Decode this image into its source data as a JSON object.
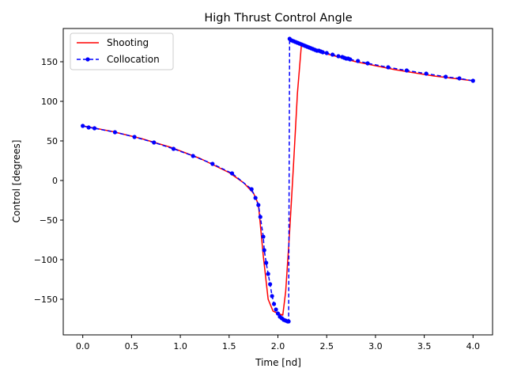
{
  "chart_data": {
    "type": "line",
    "title": "High Thrust Control Angle",
    "xlabel": "Time [nd]",
    "ylabel": "Control [degrees]",
    "xlim": [
      -0.2,
      4.2
    ],
    "ylim": [
      -195,
      192
    ],
    "xticks": [
      0.0,
      0.5,
      1.0,
      1.5,
      2.0,
      2.5,
      3.0,
      3.5,
      4.0
    ],
    "xtick_labels": [
      "0.0",
      "0.5",
      "1.0",
      "1.5",
      "2.0",
      "2.5",
      "3.0",
      "3.5",
      "4.0"
    ],
    "yticks": [
      -150,
      -100,
      -50,
      0,
      50,
      100,
      150
    ],
    "ytick_labels": [
      "−150",
      "−100",
      "−50",
      "0",
      "50",
      "100",
      "150"
    ],
    "grid": false,
    "legend_position": "upper-left",
    "series": [
      {
        "name": "Shooting",
        "color": "#ff0000",
        "style": "solid",
        "marker": "none",
        "x": [
          0.0,
          0.3,
          0.6,
          0.9,
          1.2,
          1.5,
          1.65,
          1.75,
          1.8,
          1.85,
          1.9,
          1.95,
          2.0,
          2.05,
          2.08,
          2.12,
          2.16,
          2.2,
          2.24,
          2.3,
          2.5,
          2.8,
          3.2,
          3.6,
          4.0
        ],
        "y": [
          69,
          62,
          53,
          42,
          28,
          10,
          -3,
          -16,
          -30,
          -95,
          -150,
          -165,
          -168,
          -170,
          -140,
          -65,
          20,
          110,
          170,
          168,
          160,
          150,
          140,
          132,
          126
        ]
      },
      {
        "name": "Collocation",
        "color": "#0000ff",
        "style": "dashed",
        "marker": "circle",
        "x": [
          0.0,
          0.06,
          0.12,
          0.33,
          0.53,
          0.73,
          0.93,
          1.13,
          1.33,
          1.53,
          1.73,
          1.77,
          1.8,
          1.82,
          1.85,
          1.86,
          1.88,
          1.9,
          1.92,
          1.94,
          1.96,
          1.98,
          2.0,
          2.02,
          2.04,
          2.06,
          2.08,
          2.1,
          2.11,
          2.12,
          2.14,
          2.16,
          2.18,
          2.2,
          2.22,
          2.24,
          2.26,
          2.28,
          2.3,
          2.32,
          2.34,
          2.36,
          2.38,
          2.4,
          2.42,
          2.44,
          2.46,
          2.5,
          2.56,
          2.62,
          2.66,
          2.68,
          2.7,
          2.72,
          2.74,
          2.82,
          2.92,
          3.13,
          3.32,
          3.52,
          3.72,
          3.86,
          4.0
        ],
        "y": [
          69,
          67,
          66,
          61,
          55,
          48,
          40,
          31,
          21,
          9,
          -11,
          -22,
          -31,
          -46,
          -71,
          -88,
          -104,
          -118,
          -131,
          -146,
          -156,
          -163,
          -168,
          -172,
          -174,
          -176,
          -177,
          -178,
          -178,
          179,
          177,
          176,
          175,
          174,
          173,
          172,
          171,
          170,
          169,
          168,
          167,
          166,
          165,
          164,
          164,
          163,
          162,
          161,
          159,
          157,
          156,
          155,
          154,
          154,
          153,
          151,
          148,
          143,
          139,
          135,
          131,
          129,
          126
        ]
      }
    ]
  }
}
